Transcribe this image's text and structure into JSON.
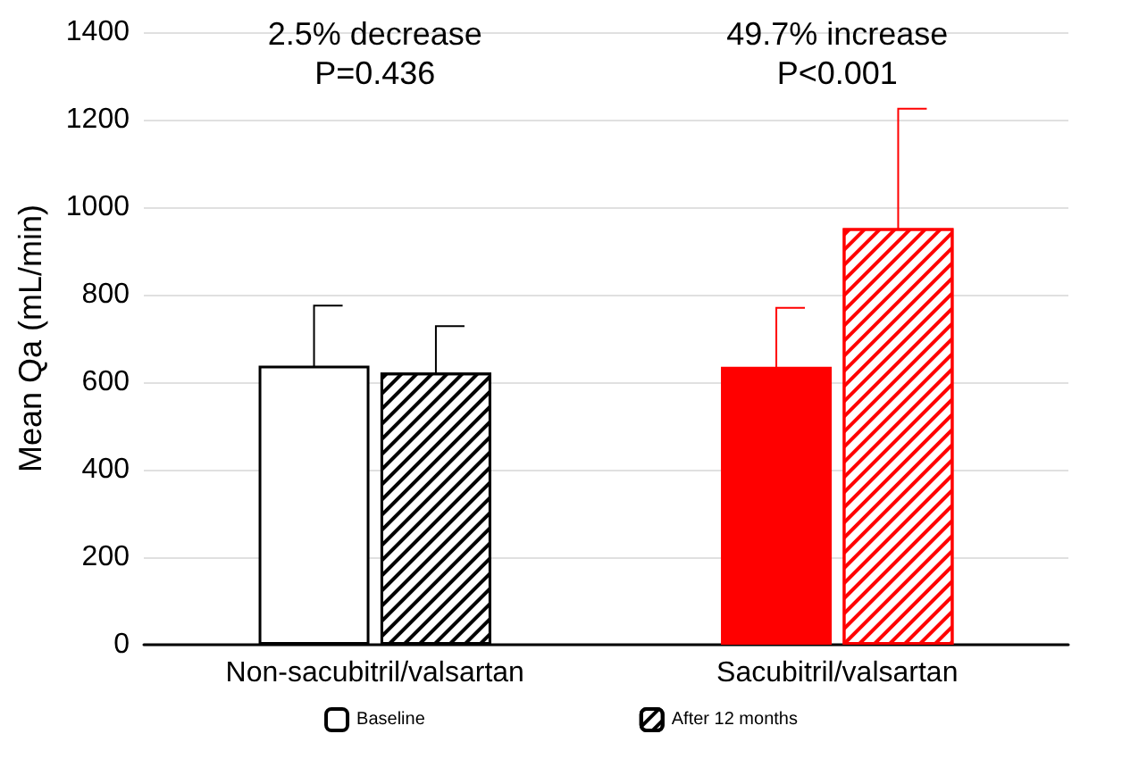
{
  "chart_data": {
    "type": "bar",
    "ylabel": "Mean Qa (mL/min)",
    "categories": [
      "Non-sacubitril/valsartan",
      "Sacubitril/valsartan"
    ],
    "series": [
      {
        "name": "Baseline",
        "colors": [
          "#ffffff",
          "#ff0000"
        ],
        "values": [
          638,
          635
        ],
        "errors": [
          137,
          135
        ]
      },
      {
        "name": "After 12 months",
        "colors": [
          "#000000",
          "#ff0000"
        ],
        "values": [
          622,
          952
        ],
        "errors": [
          106,
          273
        ]
      }
    ],
    "ylim": [
      0,
      1400
    ],
    "yticks": [
      0,
      200,
      400,
      600,
      800,
      1000,
      1200,
      1400
    ],
    "grid": "y",
    "legend": "bottom",
    "annotations": [
      "2.5% decrease\nP=0.436",
      "49.7% increase\nP<0.001"
    ]
  }
}
